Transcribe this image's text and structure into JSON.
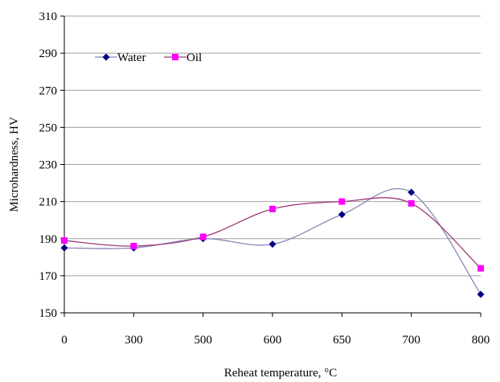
{
  "chart_data": {
    "type": "line",
    "categories": [
      "0",
      "300",
      "500",
      "600",
      "650",
      "700",
      "800"
    ],
    "series": [
      {
        "name": "Water",
        "color": "#000080",
        "marker": "diamond",
        "values": [
          185,
          185,
          190,
          187,
          203,
          215,
          160
        ]
      },
      {
        "name": "Oil",
        "color": "#ff00ff",
        "marker": "square",
        "values": [
          189,
          186,
          191,
          206,
          210,
          209,
          174
        ]
      }
    ],
    "line_color": "#8888bb",
    "oil_line_color": "#a03a7a",
    "xlabel": "Reheat temperature, ",
    "xlabel_unit": "°C",
    "ylabel": "Microhardness, HV",
    "ylim": [
      150,
      310
    ],
    "yticks": [
      150,
      170,
      190,
      210,
      230,
      250,
      270,
      290,
      310
    ],
    "grid": true,
    "legend_position": "top-left",
    "smooth": true
  }
}
